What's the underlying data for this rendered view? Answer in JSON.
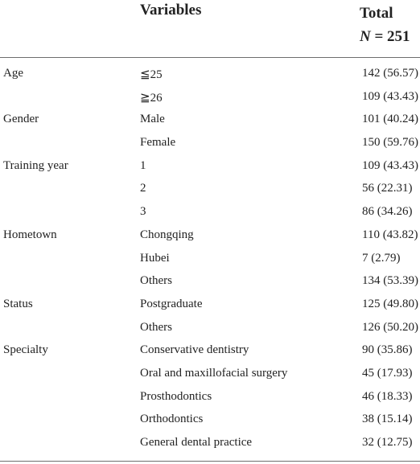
{
  "table": {
    "header": {
      "variables": "Variables",
      "total": "Total",
      "n_symbol": "N",
      "n_equals": " = 251"
    },
    "rows": [
      {
        "group": "Age",
        "category": "≦25",
        "value": "142 (56.57)"
      },
      {
        "group": "",
        "category": "≧26",
        "value": "109 (43.43)"
      },
      {
        "group": "Gender",
        "category": "Male",
        "value": "101 (40.24)"
      },
      {
        "group": "",
        "category": "Female",
        "value": "150 (59.76)"
      },
      {
        "group": "Training year",
        "category": "1",
        "value": "109 (43.43)"
      },
      {
        "group": "",
        "category": "2",
        "value": "56 (22.31)"
      },
      {
        "group": "",
        "category": "3",
        "value": "86 (34.26)"
      },
      {
        "group": "Hometown",
        "category": "Chongqing",
        "value": "110 (43.82)"
      },
      {
        "group": "",
        "category": "Hubei",
        "value": "7 (2.79)"
      },
      {
        "group": "",
        "category": "Others",
        "value": "134 (53.39)"
      },
      {
        "group": "Status",
        "category": "Postgraduate",
        "value": "125 (49.80)"
      },
      {
        "group": "",
        "category": "Others",
        "value": "126 (50.20)"
      },
      {
        "group": "Specialty",
        "category": "Conservative dentistry",
        "value": "90 (35.86)"
      },
      {
        "group": "",
        "category": "Oral and maxillofacial surgery",
        "value": "45 (17.93)"
      },
      {
        "group": "",
        "category": "Prosthodontics",
        "value": "46 (18.33)"
      },
      {
        "group": "",
        "category": "Orthodontics",
        "value": "38 (15.14)"
      },
      {
        "group": "",
        "category": "General dental practice",
        "value": "32 (12.75)"
      }
    ]
  }
}
